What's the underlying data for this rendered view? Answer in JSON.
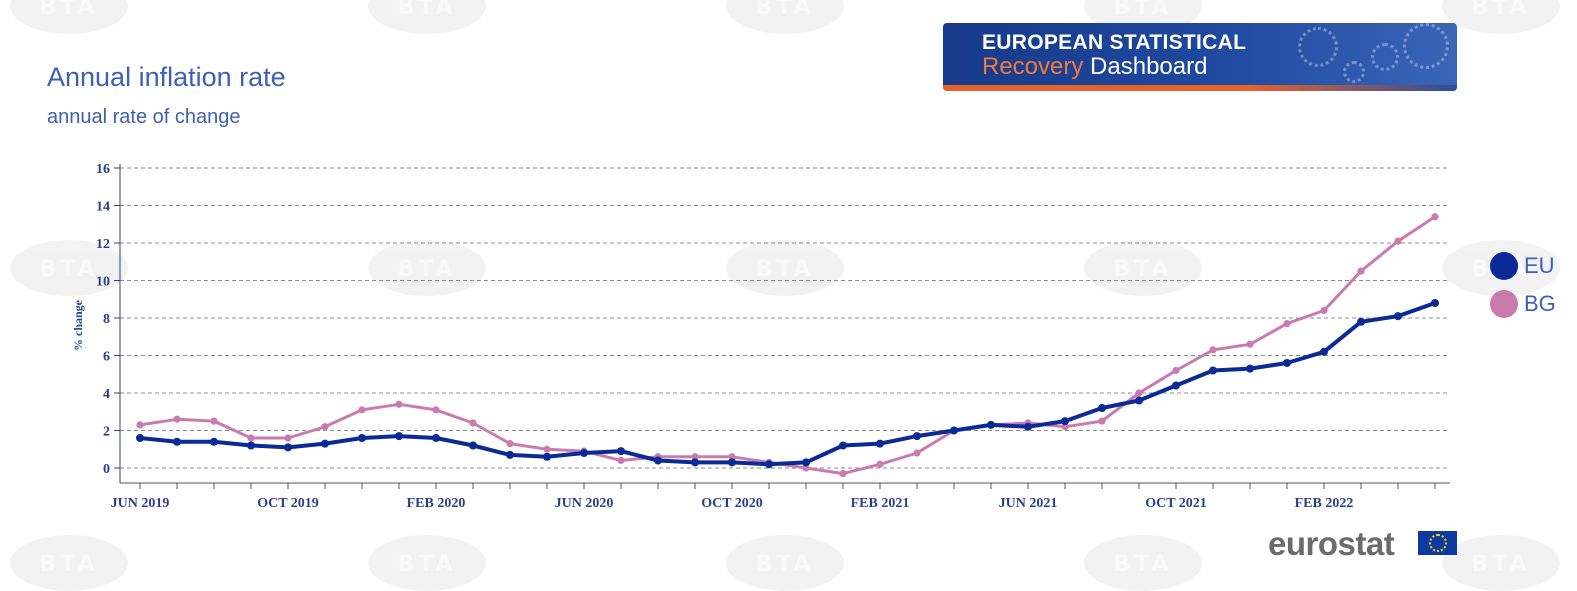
{
  "header": {
    "title": "Annual inflation rate",
    "subtitle": "annual rate of change"
  },
  "banner": {
    "line1": "EUROPEAN STATISTICAL",
    "line2_accent": "Recovery",
    "line2_rest": "Dashboard"
  },
  "watermark": {
    "text": "BTA"
  },
  "branding": {
    "logo_text": "eurostat"
  },
  "colors": {
    "eu": "#0a2a95",
    "bg": "#c97bb0",
    "title": "#3f5fb4",
    "axis_text": "#2a3f8f"
  },
  "chart_data": {
    "type": "line",
    "title": "Annual inflation rate",
    "subtitle": "annual rate of change",
    "ylabel": "% change",
    "xlabel": "",
    "ylim": [
      -0.8,
      16
    ],
    "yticks": [
      0,
      2,
      4,
      6,
      8,
      10,
      12,
      14,
      16
    ],
    "grid": true,
    "legend_position": "right",
    "x": [
      "2019-06",
      "2019-07",
      "2019-08",
      "2019-09",
      "2019-10",
      "2019-11",
      "2019-12",
      "2020-01",
      "2020-02",
      "2020-03",
      "2020-04",
      "2020-05",
      "2020-06",
      "2020-07",
      "2020-08",
      "2020-09",
      "2020-10",
      "2020-11",
      "2020-12",
      "2021-01",
      "2021-02",
      "2021-03",
      "2021-04",
      "2021-05",
      "2021-06",
      "2021-07",
      "2021-08",
      "2021-09",
      "2021-10",
      "2021-11",
      "2021-12",
      "2022-01",
      "2022-02",
      "2022-03",
      "2022-04",
      "2022-05"
    ],
    "x_tick_labels": [
      {
        "index": 0,
        "label": "JUN 2019"
      },
      {
        "index": 4,
        "label": "OCT 2019"
      },
      {
        "index": 8,
        "label": "FEB 2020"
      },
      {
        "index": 12,
        "label": "JUN 2020"
      },
      {
        "index": 16,
        "label": "OCT 2020"
      },
      {
        "index": 20,
        "label": "FEB 2021"
      },
      {
        "index": 24,
        "label": "JUN 2021"
      },
      {
        "index": 28,
        "label": "OCT 2021"
      },
      {
        "index": 32,
        "label": "FEB 2022"
      }
    ],
    "series": [
      {
        "name": "EU",
        "color": "#0a2a95",
        "values": [
          1.6,
          1.4,
          1.4,
          1.2,
          1.1,
          1.3,
          1.6,
          1.7,
          1.6,
          1.2,
          0.7,
          0.6,
          0.8,
          0.9,
          0.4,
          0.3,
          0.3,
          0.2,
          0.3,
          1.2,
          1.3,
          1.7,
          2.0,
          2.3,
          2.2,
          2.5,
          3.2,
          3.6,
          4.4,
          5.2,
          5.3,
          5.6,
          6.2,
          7.8,
          8.1,
          8.8
        ]
      },
      {
        "name": "BG",
        "color": "#c97bb0",
        "values": [
          2.3,
          2.6,
          2.5,
          1.6,
          1.6,
          2.2,
          3.1,
          3.4,
          3.1,
          2.4,
          1.3,
          1.0,
          0.9,
          0.4,
          0.6,
          0.6,
          0.6,
          0.3,
          0.0,
          -0.3,
          0.2,
          0.8,
          2.0,
          2.3,
          2.4,
          2.2,
          2.5,
          4.0,
          5.2,
          6.3,
          6.6,
          7.7,
          8.4,
          10.5,
          12.1,
          13.4
        ]
      }
    ]
  }
}
